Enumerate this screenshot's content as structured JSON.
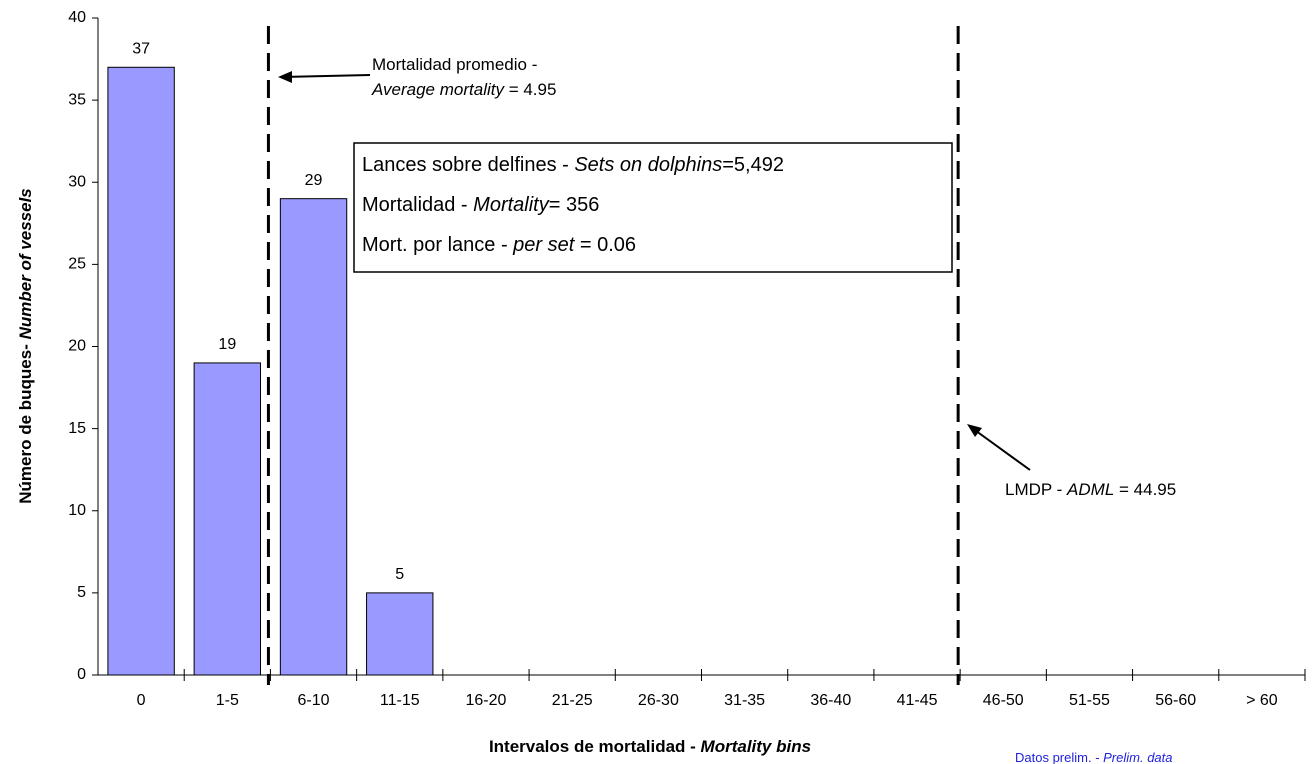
{
  "chart_data": {
    "type": "bar",
    "categories": [
      "0",
      "1-5",
      "6-10",
      "11-15",
      "16-20",
      "21-25",
      "26-30",
      "31-35",
      "36-40",
      "41-45",
      "46-50",
      "51-55",
      "56-60",
      "> 60"
    ],
    "values": [
      37,
      19,
      29,
      5,
      0,
      0,
      0,
      0,
      0,
      0,
      0,
      0,
      0,
      0
    ],
    "color": "#9999ff",
    "ylim": [
      0,
      40
    ],
    "yticks": [
      0,
      5,
      10,
      15,
      20,
      25,
      30,
      35,
      40
    ],
    "y_label": [
      "Número de buques- ",
      "Number of vessels"
    ],
    "x_label": [
      "Intervalos  de  mortalidad  - ",
      "Mortality  bins"
    ],
    "average_note": [
      "Mortalidad promedio -",
      "Average mortality",
      " = 4.95"
    ],
    "adml_note": [
      "LMDP - ",
      "ADML",
      " = 44.95"
    ],
    "box": [
      [
        "Lances sobre delfines - ",
        "Sets on dolphins",
        "=5,492"
      ],
      [
        "Mortalidad - ",
        "Mortality",
        "= 356"
      ],
      [
        "Mort. por lance - ",
        "per set",
        "  = 0.06"
      ]
    ],
    "footer": [
      "Datos  prelim.  - ",
      "Prelim.  data"
    ]
  }
}
